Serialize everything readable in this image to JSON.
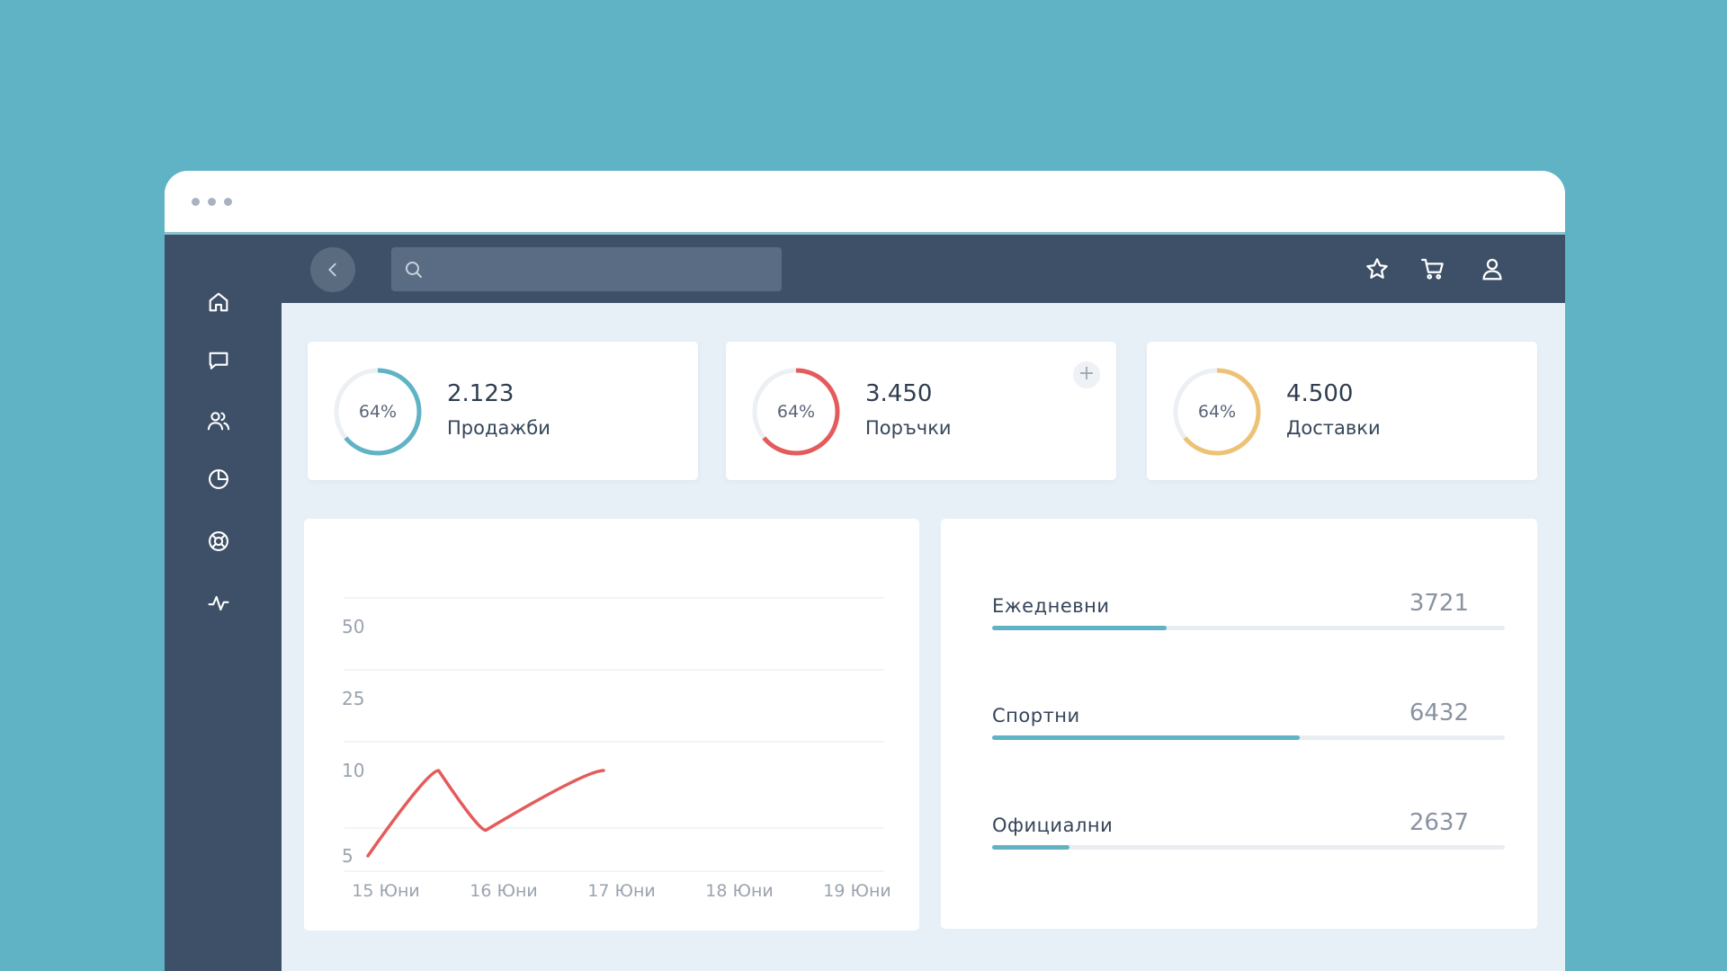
{
  "window": {
    "titlebar_dots": 3
  },
  "sidebar": {
    "items": [
      {
        "icon": "home-icon"
      },
      {
        "icon": "chat-icon"
      },
      {
        "icon": "users-icon"
      },
      {
        "icon": "pie-chart-icon"
      },
      {
        "icon": "lifebuoy-icon"
      },
      {
        "icon": "activity-icon"
      }
    ]
  },
  "topbar": {
    "back_icon": "chevron-left-icon",
    "search": {
      "placeholder": "",
      "value": ""
    },
    "icons": [
      "star-icon",
      "cart-icon",
      "user-icon"
    ]
  },
  "stats": [
    {
      "percent_label": "64%",
      "percent": 64,
      "value": "2.123",
      "label": "Продажби",
      "color": "#5fb3c5"
    },
    {
      "percent_label": "64%",
      "percent": 64,
      "value": "3.450",
      "label": "Поръчки",
      "color": "#e45b5b",
      "add_label": "+"
    },
    {
      "percent_label": "64%",
      "percent": 64,
      "value": "4.500",
      "label": "Доставки",
      "color": "#eec275"
    }
  ],
  "chart_data": {
    "type": "line",
    "x": [
      "15 Юни",
      "16 Юни",
      "17 Юни",
      "18 Юни",
      "19 Юни"
    ],
    "yticks": [
      "50",
      "25",
      "10",
      "5"
    ],
    "series": [
      {
        "values": [
          {
            "x": "15 Юни",
            "y": 5
          },
          {
            "x": "15.6 Юни",
            "y": 10
          },
          {
            "x": "16 Юни",
            "y": 6.5
          },
          {
            "x": "17 Юни",
            "y": 10
          }
        ],
        "color": "#e45b5b"
      }
    ],
    "grid": true
  },
  "progress": [
    {
      "label": "Ежедневни",
      "value": "3721",
      "fraction": 0.34
    },
    {
      "label": "Спортни",
      "value": "6432",
      "fraction": 0.6
    },
    {
      "label": "Официални",
      "value": "2637",
      "fraction": 0.15
    }
  ]
}
